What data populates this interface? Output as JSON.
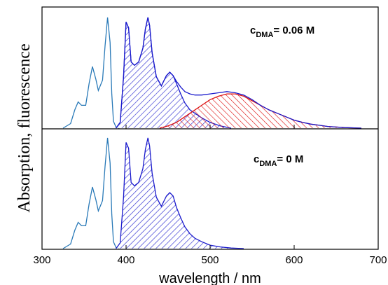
{
  "chart_data": [
    {
      "type": "line",
      "panel": "top",
      "annotation": {
        "prefix": "c",
        "subscript": "DMA",
        "suffix": "= 0.06 M"
      },
      "xlim": [
        300,
        700
      ],
      "series": [
        {
          "style": "line",
          "color": "#2a7ab8",
          "points": [
            [
              325,
              0
            ],
            [
              334,
              0.04
            ],
            [
              339,
              0.16
            ],
            [
              343,
              0.23
            ],
            [
              347,
              0.2
            ],
            [
              352,
              0.2
            ],
            [
              356,
              0.39
            ],
            [
              360,
              0.54
            ],
            [
              364,
              0.43
            ],
            [
              367,
              0.33
            ],
            [
              372,
              0.42
            ],
            [
              375,
              0.72
            ],
            [
              378,
              0.97
            ],
            [
              381,
              0.75
            ],
            [
              383,
              0.3
            ],
            [
              385,
              0.06
            ],
            [
              388,
              0.01
            ],
            [
              392,
              0
            ]
          ]
        },
        {
          "style": "filled-hatch",
          "color": "#1a1acc",
          "points": [
            [
              388,
              0
            ],
            [
              393,
              0.05
            ],
            [
              397,
              0.45
            ],
            [
              400,
              0.93
            ],
            [
              403,
              0.88
            ],
            [
              406,
              0.58
            ],
            [
              410,
              0.55
            ],
            [
              415,
              0.58
            ],
            [
              420,
              0.7
            ],
            [
              423,
              0.87
            ],
            [
              426,
              0.97
            ],
            [
              428,
              0.9
            ],
            [
              431,
              0.66
            ],
            [
              436,
              0.45
            ],
            [
              442,
              0.37
            ],
            [
              448,
              0.46
            ],
            [
              452,
              0.49
            ],
            [
              456,
              0.46
            ],
            [
              460,
              0.39
            ],
            [
              465,
              0.3
            ],
            [
              470,
              0.22
            ],
            [
              476,
              0.16
            ],
            [
              482,
              0.13
            ],
            [
              490,
              0.09
            ],
            [
              500,
              0.05
            ],
            [
              512,
              0.02
            ],
            [
              525,
              0
            ]
          ]
        },
        {
          "style": "filled-hatch",
          "color": "#dd1111",
          "points": [
            [
              440,
              0
            ],
            [
              450,
              0.02
            ],
            [
              460,
              0.05
            ],
            [
              470,
              0.1
            ],
            [
              480,
              0.15
            ],
            [
              490,
              0.2
            ],
            [
              500,
              0.25
            ],
            [
              510,
              0.28
            ],
            [
              520,
              0.3
            ],
            [
              530,
              0.3
            ],
            [
              540,
              0.28
            ],
            [
              550,
              0.24
            ],
            [
              560,
              0.2
            ],
            [
              570,
              0.16
            ],
            [
              580,
              0.13
            ],
            [
              590,
              0.1
            ],
            [
              600,
              0.07
            ],
            [
              610,
              0.05
            ],
            [
              620,
              0.035
            ],
            [
              630,
              0.025
            ],
            [
              640,
              0.015
            ],
            [
              650,
              0.01
            ],
            [
              660,
              0.005
            ],
            [
              680,
              0
            ]
          ]
        },
        {
          "style": "line",
          "color": "#1a1acc",
          "points": [
            [
              388,
              0
            ],
            [
              393,
              0.05
            ],
            [
              397,
              0.45
            ],
            [
              400,
              0.93
            ],
            [
              403,
              0.88
            ],
            [
              406,
              0.58
            ],
            [
              410,
              0.55
            ],
            [
              415,
              0.58
            ],
            [
              420,
              0.7
            ],
            [
              423,
              0.87
            ],
            [
              426,
              0.97
            ],
            [
              428,
              0.9
            ],
            [
              431,
              0.66
            ],
            [
              436,
              0.45
            ],
            [
              442,
              0.37
            ],
            [
              448,
              0.46
            ],
            [
              452,
              0.49
            ],
            [
              456,
              0.46
            ],
            [
              460,
              0.41
            ],
            [
              465,
              0.36
            ],
            [
              470,
              0.32
            ],
            [
              476,
              0.3
            ],
            [
              482,
              0.29
            ],
            [
              490,
              0.29
            ],
            [
              500,
              0.3
            ],
            [
              510,
              0.31
            ],
            [
              520,
              0.32
            ],
            [
              530,
              0.31
            ],
            [
              540,
              0.29
            ],
            [
              550,
              0.25
            ],
            [
              560,
              0.2
            ],
            [
              570,
              0.16
            ],
            [
              580,
              0.13
            ],
            [
              590,
              0.1
            ],
            [
              600,
              0.07
            ],
            [
              610,
              0.05
            ],
            [
              620,
              0.035
            ],
            [
              630,
              0.025
            ],
            [
              640,
              0.015
            ],
            [
              650,
              0.01
            ],
            [
              660,
              0.005
            ],
            [
              680,
              0
            ]
          ]
        }
      ]
    },
    {
      "type": "line",
      "panel": "bottom",
      "annotation": {
        "prefix": "c",
        "subscript": "DMA",
        "suffix": "= 0 M"
      },
      "xlim": [
        300,
        700
      ],
      "series": [
        {
          "style": "line",
          "color": "#2a7ab8",
          "points": [
            [
              325,
              0
            ],
            [
              334,
              0.04
            ],
            [
              339,
              0.16
            ],
            [
              343,
              0.23
            ],
            [
              347,
              0.2
            ],
            [
              352,
              0.2
            ],
            [
              356,
              0.39
            ],
            [
              360,
              0.54
            ],
            [
              364,
              0.43
            ],
            [
              367,
              0.33
            ],
            [
              372,
              0.42
            ],
            [
              375,
              0.72
            ],
            [
              378,
              0.97
            ],
            [
              381,
              0.75
            ],
            [
              383,
              0.3
            ],
            [
              385,
              0.06
            ],
            [
              388,
              0.01
            ],
            [
              392,
              0
            ]
          ]
        },
        {
          "style": "filled-hatch",
          "color": "#1a1acc",
          "points": [
            [
              388,
              0
            ],
            [
              393,
              0.05
            ],
            [
              397,
              0.45
            ],
            [
              400,
              0.93
            ],
            [
              403,
              0.88
            ],
            [
              406,
              0.58
            ],
            [
              410,
              0.55
            ],
            [
              415,
              0.58
            ],
            [
              420,
              0.7
            ],
            [
              423,
              0.87
            ],
            [
              426,
              0.97
            ],
            [
              428,
              0.9
            ],
            [
              431,
              0.66
            ],
            [
              436,
              0.45
            ],
            [
              442,
              0.37
            ],
            [
              448,
              0.46
            ],
            [
              452,
              0.49
            ],
            [
              456,
              0.46
            ],
            [
              460,
              0.36
            ],
            [
              465,
              0.27
            ],
            [
              470,
              0.19
            ],
            [
              476,
              0.13
            ],
            [
              482,
              0.09
            ],
            [
              490,
              0.06
            ],
            [
              500,
              0.03
            ],
            [
              512,
              0.015
            ],
            [
              525,
              0.005
            ],
            [
              540,
              0
            ]
          ]
        }
      ]
    }
  ],
  "axis": {
    "xlabel": "wavelength / nm",
    "ylabel": "Absorption, fluorescence",
    "xticks": [
      300,
      400,
      500,
      600,
      700
    ]
  }
}
